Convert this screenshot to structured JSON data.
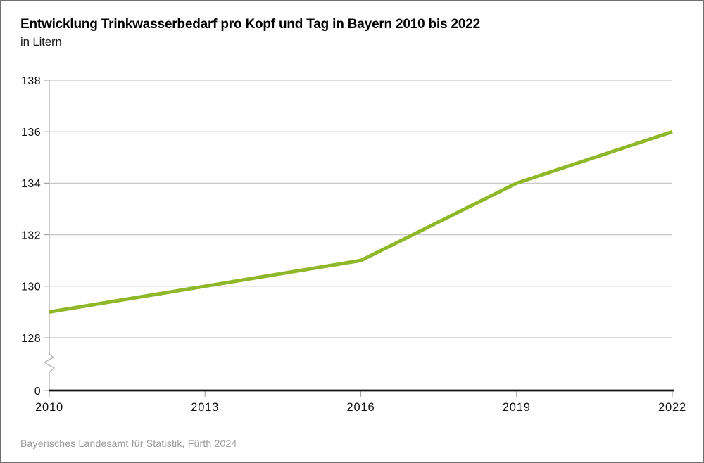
{
  "header": {
    "title": "Entwicklung Trinkwasserbedarf pro Kopf und Tag in Bayern 2010 bis 2022",
    "subtitle": "in Litern"
  },
  "source": "Bayerisches Landesamt für Statistik, Fürth 2024",
  "chart_data": {
    "type": "line",
    "title": "Entwicklung Trinkwasserbedarf pro Kopf und Tag in Bayern 2010 bis 2022",
    "subtitle": "in Litern",
    "ylabel": "in Litern",
    "categories": [
      "2010",
      "2013",
      "2016",
      "2019",
      "2022"
    ],
    "values": [
      129,
      130,
      131,
      134,
      136
    ],
    "y_ticks": [
      138,
      136,
      134,
      132,
      130,
      128
    ],
    "y_baseline_label": "0",
    "ylim_display": [
      128,
      138
    ],
    "axis_break": true,
    "grid": true,
    "legend": "none",
    "colors": {
      "line": "#8eb829",
      "grid": "#c8c8c8",
      "y_axis": "#b2b2b2",
      "tick": "#a6a6a6",
      "x_axis": "#111111",
      "label": "#111111",
      "source_text": "#9a9a9a"
    }
  }
}
